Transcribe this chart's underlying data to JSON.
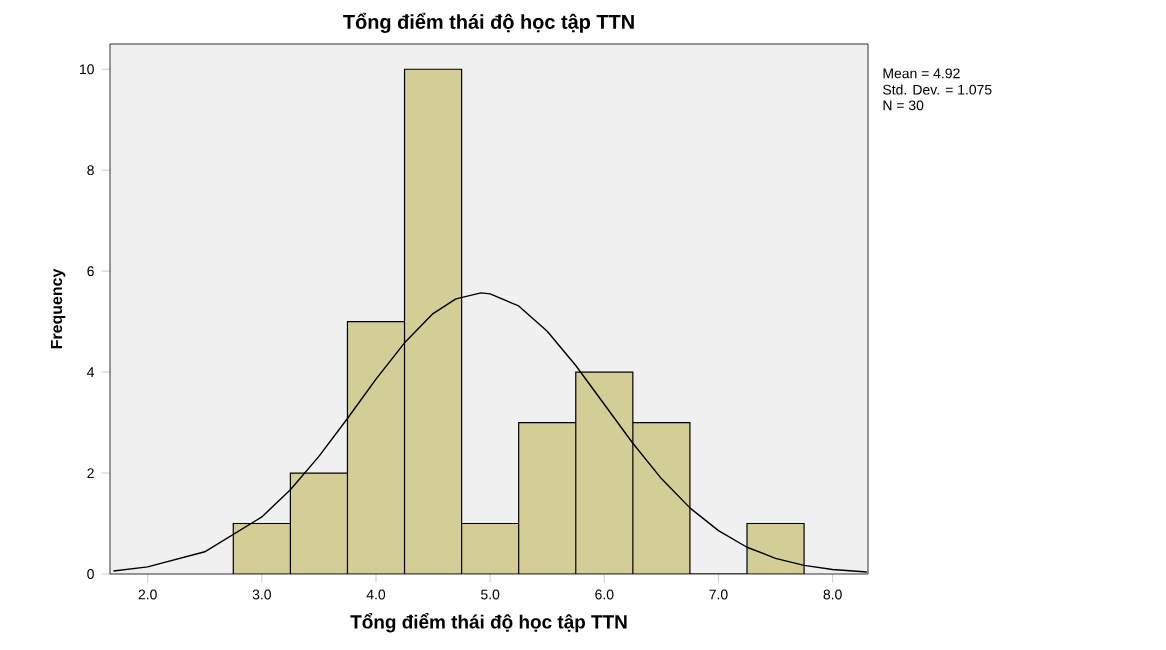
{
  "chart_data": {
    "type": "histogram",
    "title": "Tổng điểm thái độ học tập TTN",
    "xlabel": "Tổng điểm thái độ học tập TTN",
    "ylabel": "Frequency",
    "bins": [
      2.75,
      3.25,
      3.75,
      4.25,
      4.75,
      5.25,
      5.75,
      6.25,
      6.75,
      7.25,
      7.75
    ],
    "values": [
      1,
      2,
      5,
      10,
      1,
      3,
      4,
      3,
      0,
      1
    ],
    "color": "#d3cd96",
    "series": [
      {
        "type": "line",
        "color": "#000000",
        "x": [
          1.7,
          2.0,
          2.5,
          3.0,
          3.25,
          3.5,
          3.75,
          4.0,
          4.25,
          4.5,
          4.7,
          4.92,
          5.0,
          5.25,
          5.5,
          5.75,
          6.0,
          6.25,
          6.5,
          6.75,
          7.0,
          7.25,
          7.5,
          7.75,
          8.0,
          8.3
        ],
        "values": [
          0.06,
          0.14,
          0.44,
          1.13,
          1.67,
          2.33,
          3.08,
          3.86,
          4.58,
          5.16,
          5.45,
          5.57,
          5.55,
          5.31,
          4.81,
          4.13,
          3.36,
          2.59,
          1.89,
          1.31,
          0.86,
          0.53,
          0.31,
          0.17,
          0.09,
          0.04
        ]
      }
    ],
    "xlim": [
      1.67,
      8.31
    ],
    "ylim": [
      0,
      10.5
    ],
    "xticks": [
      {
        "value": 2,
        "label": "2.0"
      },
      {
        "value": 3,
        "label": "3.0"
      },
      {
        "value": 4,
        "label": "4.0"
      },
      {
        "value": 5,
        "label": "5.0"
      },
      {
        "value": 6,
        "label": "6.0"
      },
      {
        "value": 7,
        "label": "7.0"
      },
      {
        "value": 8,
        "label": "8.0"
      }
    ],
    "yticks": [
      0,
      2,
      4,
      6,
      8,
      10
    ],
    "annotations": [
      "Mean = 4.92",
      "Std. Dev. = 1.075",
      "N = 30"
    ]
  }
}
